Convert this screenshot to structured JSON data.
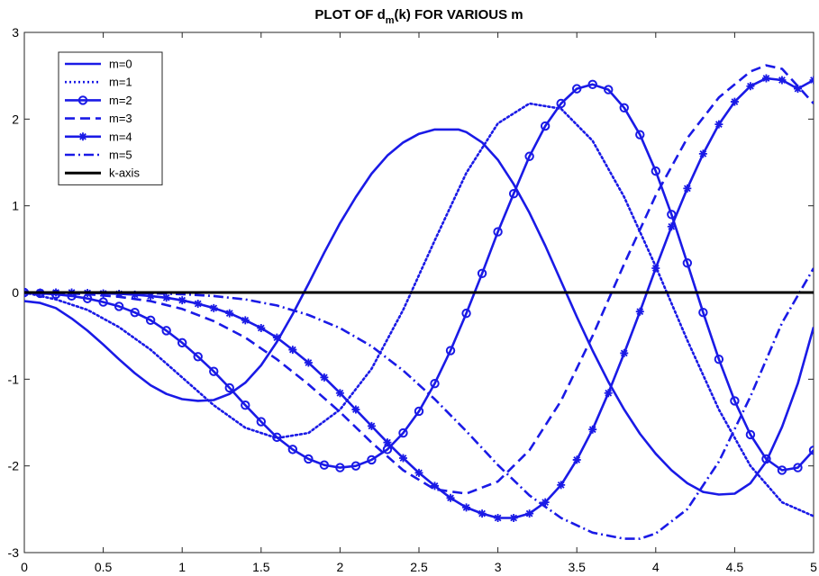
{
  "chart_data": {
    "type": "line",
    "title": {
      "main": "PLOT OF d",
      "subscript": "m",
      "rest": "(k) FOR VARIOUS m"
    },
    "xlabel": "",
    "ylabel": "",
    "xlim": [
      0,
      5
    ],
    "ylim": [
      -3,
      3
    ],
    "xticks": [
      0,
      0.5,
      1,
      1.5,
      2,
      2.5,
      3,
      3.5,
      4,
      4.5,
      5
    ],
    "xtick_labels": [
      "0",
      "0.5",
      "1",
      "1.5",
      "2",
      "2.5",
      "3",
      "3.5",
      "4",
      "4.5",
      "5"
    ],
    "yticks": [
      -3,
      -2,
      -1,
      0,
      1,
      2,
      3
    ],
    "ytick_labels": [
      "-3",
      "-2",
      "-1",
      "0",
      "1",
      "2",
      "3"
    ],
    "grid": false,
    "legend_position": "top-left",
    "series": [
      {
        "name": "m=0",
        "style": "solid",
        "marker": "none",
        "color": "#1a1ae6",
        "x": [
          0,
          0.1,
          0.2,
          0.3,
          0.4,
          0.5,
          0.6,
          0.7,
          0.8,
          0.9,
          1.0,
          1.1,
          1.2,
          1.3,
          1.4,
          1.5,
          1.6,
          1.7,
          1.8,
          1.9,
          2.0,
          2.1,
          2.2,
          2.3,
          2.4,
          2.5,
          2.6,
          2.7,
          2.75,
          2.8,
          2.9,
          3.0,
          3.1,
          3.2,
          3.3,
          3.4,
          3.5,
          3.6,
          3.7,
          3.8,
          3.9,
          4.0,
          4.1,
          4.2,
          4.3,
          4.4,
          4.5,
          4.6,
          4.7,
          4.8,
          4.9,
          5.0
        ],
        "y": [
          -0.1,
          -0.12,
          -0.18,
          -0.3,
          -0.44,
          -0.6,
          -0.77,
          -0.93,
          -1.07,
          -1.17,
          -1.23,
          -1.25,
          -1.24,
          -1.17,
          -1.04,
          -0.84,
          -0.57,
          -0.25,
          0.1,
          0.46,
          0.8,
          1.1,
          1.37,
          1.58,
          1.73,
          1.83,
          1.88,
          1.88,
          1.88,
          1.85,
          1.73,
          1.53,
          1.25,
          0.92,
          0.54,
          0.13,
          -0.28,
          -0.67,
          -1.03,
          -1.35,
          -1.63,
          -1.86,
          -2.05,
          -2.2,
          -2.3,
          -2.33,
          -2.32,
          -2.2,
          -1.95,
          -1.55,
          -1.05,
          -0.4
        ]
      },
      {
        "name": "m=1",
        "style": "dotted",
        "marker": "none",
        "color": "#1a1ae6",
        "x": [
          0,
          0.2,
          0.4,
          0.6,
          0.8,
          1.0,
          1.2,
          1.4,
          1.6,
          1.8,
          2.0,
          2.2,
          2.4,
          2.6,
          2.8,
          3.0,
          3.2,
          3.4,
          3.6,
          3.8,
          4.0,
          4.2,
          4.4,
          4.6,
          4.8,
          5.0
        ],
        "y": [
          0,
          -0.08,
          -0.2,
          -0.4,
          -0.66,
          -0.98,
          -1.3,
          -1.56,
          -1.68,
          -1.62,
          -1.35,
          -0.88,
          -0.2,
          0.6,
          1.38,
          1.95,
          2.18,
          2.12,
          1.75,
          1.1,
          0.3,
          -0.55,
          -1.35,
          -2.0,
          -2.42,
          -2.58
        ]
      },
      {
        "name": "m=2",
        "style": "solid",
        "marker": "circle",
        "color": "#1a1ae6",
        "x": [
          0,
          0.1,
          0.2,
          0.3,
          0.4,
          0.5,
          0.6,
          0.7,
          0.8,
          0.9,
          1.0,
          1.1,
          1.2,
          1.3,
          1.4,
          1.5,
          1.6,
          1.7,
          1.8,
          1.9,
          2.0,
          2.1,
          2.2,
          2.3,
          2.4,
          2.5,
          2.6,
          2.7,
          2.8,
          2.9,
          3.0,
          3.1,
          3.2,
          3.3,
          3.4,
          3.5,
          3.6,
          3.7,
          3.8,
          3.9,
          4.0,
          4.1,
          4.2,
          4.3,
          4.4,
          4.5,
          4.6,
          4.7,
          4.8,
          4.9,
          5.0
        ],
        "y": [
          0,
          -0.01,
          -0.02,
          -0.04,
          -0.07,
          -0.11,
          -0.16,
          -0.23,
          -0.32,
          -0.44,
          -0.58,
          -0.74,
          -0.91,
          -1.1,
          -1.3,
          -1.49,
          -1.67,
          -1.81,
          -1.92,
          -1.99,
          -2.02,
          -2.0,
          -1.93,
          -1.81,
          -1.62,
          -1.37,
          -1.05,
          -0.67,
          -0.24,
          0.22,
          0.7,
          1.14,
          1.57,
          1.92,
          2.18,
          2.35,
          2.4,
          2.34,
          2.13,
          1.82,
          1.4,
          0.9,
          0.34,
          -0.23,
          -0.77,
          -1.25,
          -1.64,
          -1.92,
          -2.05,
          -2.02,
          -1.82
        ]
      },
      {
        "name": "m=3",
        "style": "dashed",
        "marker": "none",
        "color": "#1a1ae6",
        "x": [
          0,
          0.2,
          0.4,
          0.6,
          0.8,
          1.0,
          1.2,
          1.4,
          1.6,
          1.8,
          2.0,
          2.2,
          2.4,
          2.6,
          2.8,
          3.0,
          3.2,
          3.4,
          3.6,
          3.8,
          4.0,
          4.2,
          4.4,
          4.6,
          4.7,
          4.8,
          5.0
        ],
        "y": [
          0,
          -0.005,
          -0.02,
          -0.05,
          -0.1,
          -0.19,
          -0.33,
          -0.52,
          -0.77,
          -1.06,
          -1.38,
          -1.73,
          -2.05,
          -2.27,
          -2.32,
          -2.18,
          -1.82,
          -1.25,
          -0.5,
          0.33,
          1.12,
          1.78,
          2.25,
          2.55,
          2.62,
          2.58,
          2.18
        ]
      },
      {
        "name": "m=4",
        "style": "solid",
        "marker": "star",
        "color": "#1a1ae6",
        "x": [
          0,
          0.1,
          0.2,
          0.3,
          0.4,
          0.5,
          0.6,
          0.7,
          0.8,
          0.9,
          1.0,
          1.1,
          1.2,
          1.3,
          1.4,
          1.5,
          1.6,
          1.7,
          1.8,
          1.9,
          2.0,
          2.1,
          2.2,
          2.3,
          2.4,
          2.5,
          2.6,
          2.7,
          2.8,
          2.9,
          3.0,
          3.1,
          3.2,
          3.3,
          3.4,
          3.5,
          3.6,
          3.7,
          3.8,
          3.9,
          4.0,
          4.1,
          4.2,
          4.3,
          4.4,
          4.5,
          4.6,
          4.7,
          4.8,
          4.9,
          5.0
        ],
        "y": [
          0,
          0,
          0,
          0,
          -0.005,
          -0.01,
          -0.015,
          -0.025,
          -0.04,
          -0.06,
          -0.09,
          -0.13,
          -0.18,
          -0.24,
          -0.32,
          -0.41,
          -0.52,
          -0.66,
          -0.81,
          -0.98,
          -1.16,
          -1.35,
          -1.54,
          -1.73,
          -1.91,
          -2.08,
          -2.23,
          -2.37,
          -2.48,
          -2.55,
          -2.6,
          -2.6,
          -2.55,
          -2.42,
          -2.22,
          -1.93,
          -1.58,
          -1.16,
          -0.7,
          -0.22,
          0.28,
          0.76,
          1.2,
          1.6,
          1.94,
          2.2,
          2.38,
          2.47,
          2.45,
          2.35,
          2.45
        ]
      },
      {
        "name": "m=5",
        "style": "dashdot",
        "marker": "none",
        "color": "#1a1ae6",
        "x": [
          0,
          0.2,
          0.4,
          0.6,
          0.8,
          1.0,
          1.2,
          1.4,
          1.6,
          1.8,
          2.0,
          2.2,
          2.4,
          2.6,
          2.8,
          3.0,
          3.2,
          3.4,
          3.6,
          3.8,
          3.9,
          4.0,
          4.2,
          4.4,
          4.6,
          4.8,
          5.0
        ],
        "y": [
          0,
          0,
          0,
          -0.002,
          -0.008,
          -0.02,
          -0.04,
          -0.08,
          -0.15,
          -0.26,
          -0.41,
          -0.62,
          -0.9,
          -1.23,
          -1.6,
          -1.99,
          -2.34,
          -2.6,
          -2.77,
          -2.84,
          -2.84,
          -2.78,
          -2.5,
          -1.95,
          -1.2,
          -0.35,
          0.28
        ]
      },
      {
        "name": "k-axis",
        "style": "solid",
        "marker": "none",
        "color": "#000000",
        "x": [
          0,
          5
        ],
        "y": [
          0,
          0
        ]
      }
    ]
  }
}
